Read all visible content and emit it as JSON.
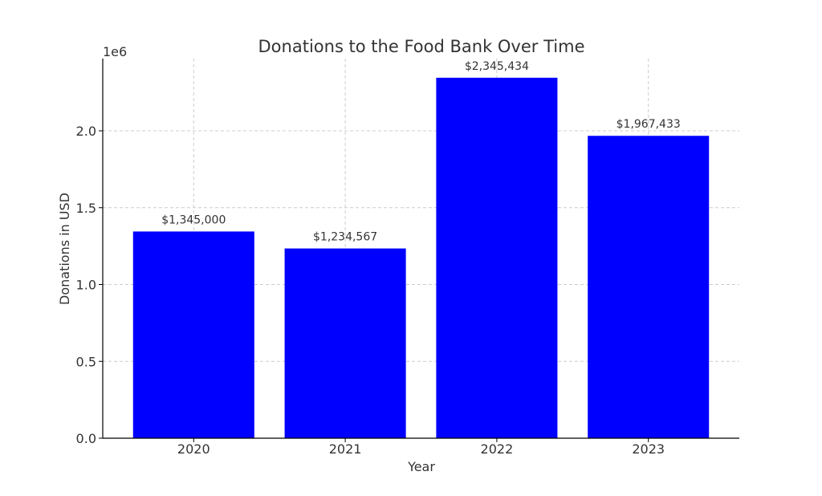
{
  "chart_data": {
    "type": "bar",
    "title": "Donations to the Food Bank Over Time",
    "xlabel": "Year",
    "ylabel": "Donations in USD",
    "y_offset_text": "1e6",
    "categories": [
      "2020",
      "2021",
      "2022",
      "2023"
    ],
    "values": [
      1345000,
      1234567,
      2345434,
      1967433
    ],
    "data_labels": [
      "$1,345,000",
      "$1,234,567",
      "$2,345,434",
      "$1,967,433"
    ],
    "ylim": [
      0,
      2470000
    ],
    "yticks": [
      0,
      500000,
      1000000,
      1500000,
      2000000
    ],
    "ytick_labels": [
      "0.0",
      "0.5",
      "1.0",
      "1.5",
      "2.0"
    ],
    "grid": true,
    "bar_color": "#0000ff"
  }
}
